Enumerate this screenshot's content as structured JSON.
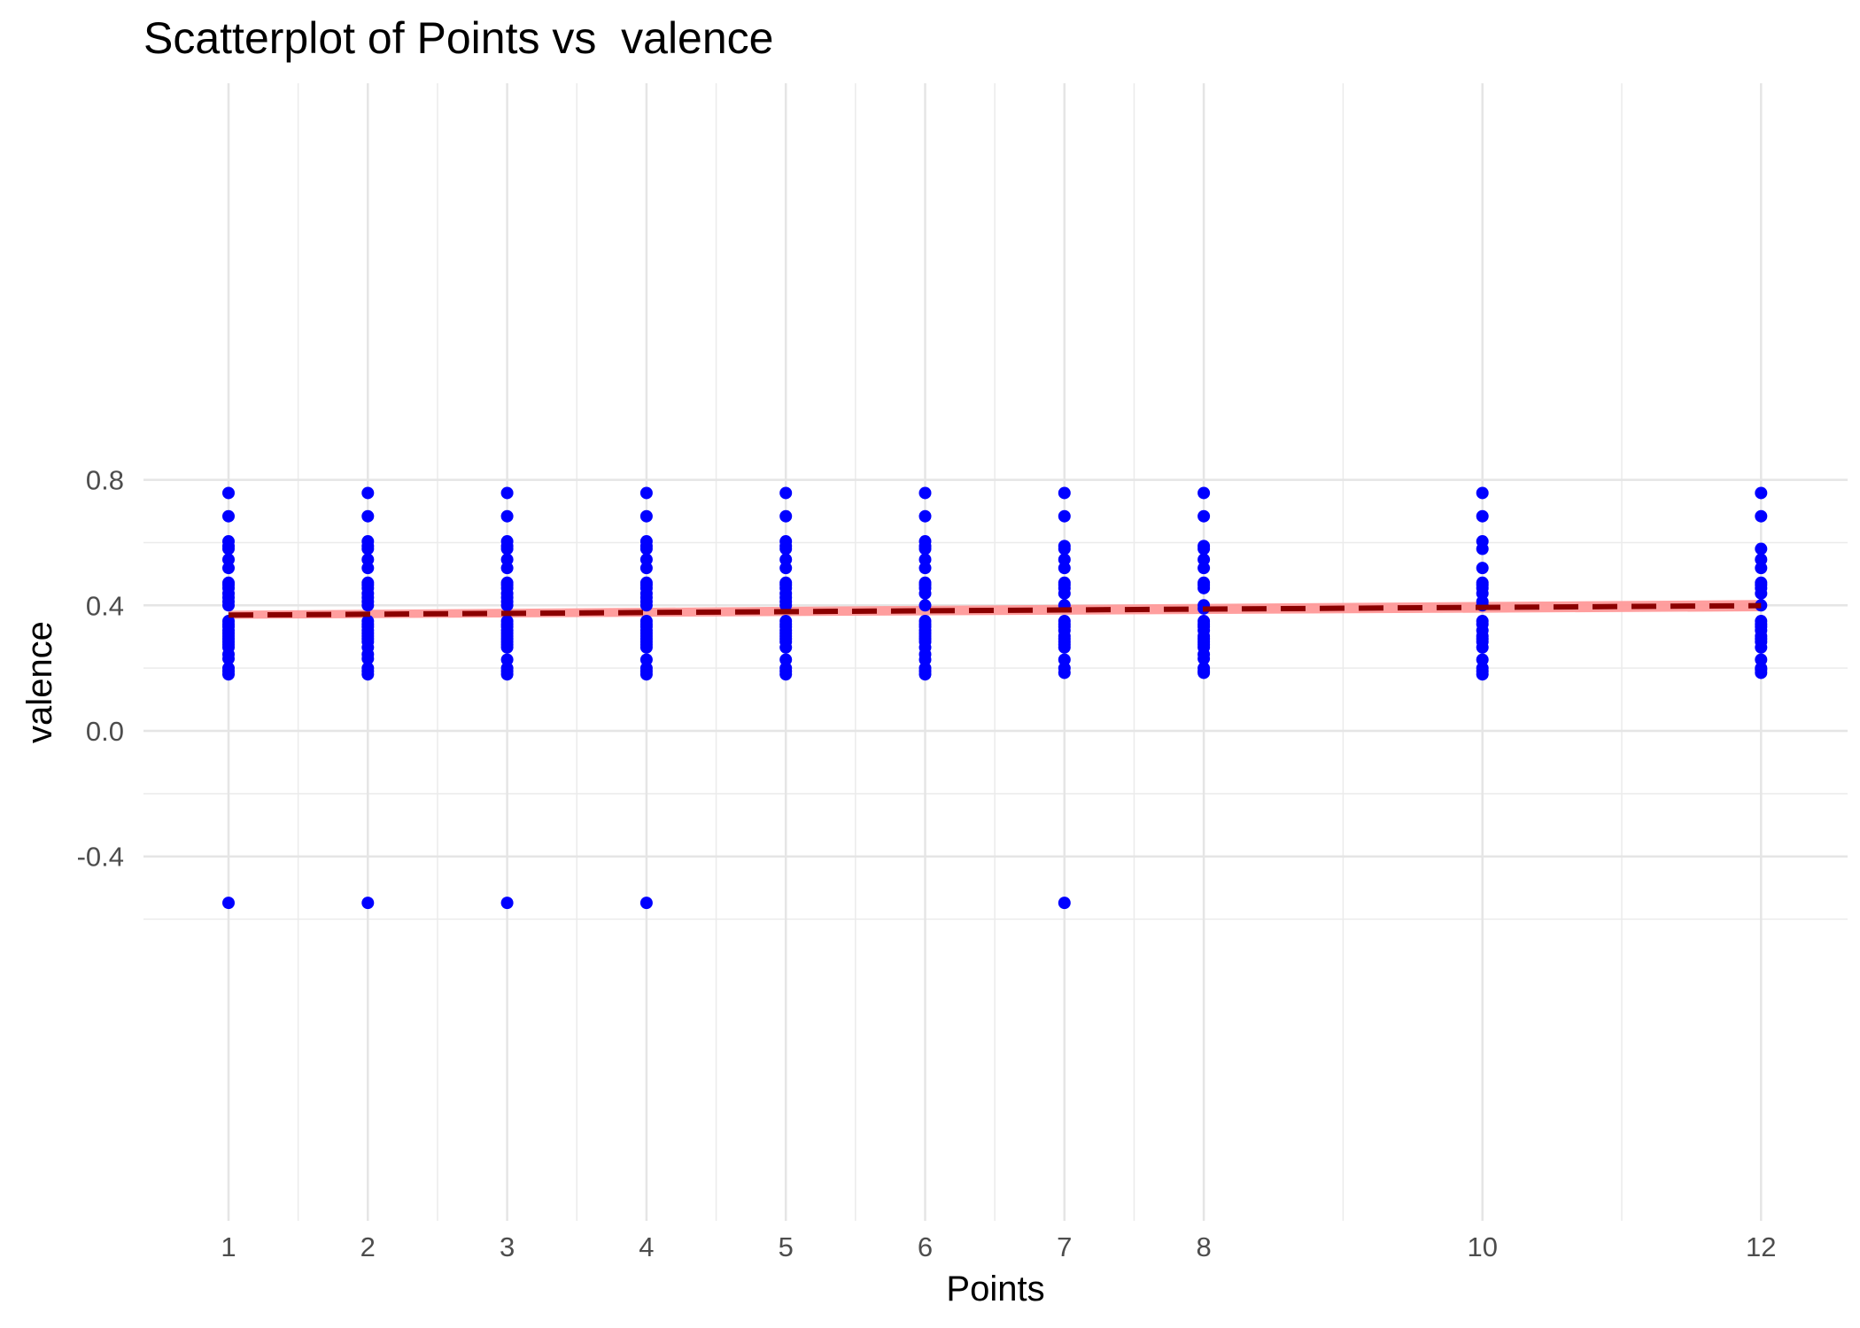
{
  "chart_data": {
    "type": "scatter",
    "title": "Scatterplot of Points vs  valence",
    "xlabel": "Points",
    "ylabel": "valence",
    "xlim": [
      0.4,
      12.4
    ],
    "ylim": [
      -0.6,
      0.81
    ],
    "x_ticks": [
      1,
      2,
      3,
      4,
      5,
      6,
      7,
      8,
      10,
      12
    ],
    "x_tick_labels": [
      "1",
      "2",
      "3",
      "4",
      "5",
      "6",
      "7",
      "8",
      "10",
      "12"
    ],
    "y_ticks": [
      -0.4,
      0.0,
      0.4,
      0.8
    ],
    "y_tick_labels": [
      "-0.4",
      "0.0",
      "0.4",
      "0.8"
    ],
    "grid": true,
    "point_color": "#0000ff",
    "series": [
      {
        "values": [
          {
            "x": 1,
            "y": [
              0.758,
              0.684,
              0.604,
              0.589,
              0.58,
              0.546,
              0.519,
              0.472,
              0.465,
              0.455,
              0.438,
              0.425,
              0.412,
              0.4,
              0.35,
              0.34,
              0.332,
              0.32,
              0.311,
              0.302,
              0.293,
              0.284,
              0.275,
              0.266,
              0.244,
              0.23,
              0.2,
              0.19,
              0.18,
              -0.548
            ]
          },
          {
            "x": 2,
            "y": [
              0.758,
              0.684,
              0.604,
              0.589,
              0.58,
              0.546,
              0.519,
              0.472,
              0.465,
              0.455,
              0.438,
              0.425,
              0.412,
              0.4,
              0.35,
              0.34,
              0.332,
              0.32,
              0.311,
              0.302,
              0.293,
              0.284,
              0.266,
              0.244,
              0.23,
              0.2,
              0.19,
              0.18,
              -0.548
            ]
          },
          {
            "x": 3,
            "y": [
              0.758,
              0.684,
              0.604,
              0.589,
              0.58,
              0.546,
              0.519,
              0.472,
              0.465,
              0.455,
              0.438,
              0.425,
              0.412,
              0.4,
              0.35,
              0.34,
              0.332,
              0.32,
              0.311,
              0.302,
              0.293,
              0.284,
              0.275,
              0.266,
              0.227,
              0.2,
              0.19,
              0.18,
              -0.548
            ]
          },
          {
            "x": 4,
            "y": [
              0.758,
              0.684,
              0.604,
              0.589,
              0.58,
              0.546,
              0.519,
              0.472,
              0.465,
              0.455,
              0.438,
              0.425,
              0.412,
              0.4,
              0.35,
              0.34,
              0.332,
              0.32,
              0.311,
              0.302,
              0.293,
              0.284,
              0.275,
              0.266,
              0.227,
              0.2,
              0.19,
              0.18,
              -0.548
            ]
          },
          {
            "x": 5,
            "y": [
              0.758,
              0.684,
              0.604,
              0.589,
              0.58,
              0.546,
              0.519,
              0.472,
              0.465,
              0.455,
              0.438,
              0.425,
              0.412,
              0.4,
              0.35,
              0.34,
              0.332,
              0.32,
              0.311,
              0.302,
              0.293,
              0.284,
              0.266,
              0.227,
              0.2,
              0.19,
              0.18
            ]
          },
          {
            "x": 6,
            "y": [
              0.758,
              0.684,
              0.604,
              0.589,
              0.58,
              0.546,
              0.519,
              0.472,
              0.465,
              0.455,
              0.438,
              0.4,
              0.35,
              0.34,
              0.332,
              0.32,
              0.311,
              0.302,
              0.293,
              0.284,
              0.266,
              0.244,
              0.227,
              0.2,
              0.19,
              0.18
            ]
          },
          {
            "x": 7,
            "y": [
              0.758,
              0.684,
              0.589,
              0.58,
              0.546,
              0.519,
              0.472,
              0.465,
              0.455,
              0.438,
              0.4,
              0.35,
              0.34,
              0.332,
              0.32,
              0.302,
              0.293,
              0.284,
              0.275,
              0.266,
              0.227,
              0.2,
              0.185,
              -0.548
            ]
          },
          {
            "x": 8,
            "y": [
              0.758,
              0.684,
              0.589,
              0.58,
              0.546,
              0.519,
              0.472,
              0.465,
              0.455,
              0.4,
              0.39,
              0.35,
              0.34,
              0.332,
              0.32,
              0.302,
              0.293,
              0.284,
              0.275,
              0.266,
              0.244,
              0.23,
              0.2,
              0.19,
              0.185
            ]
          },
          {
            "x": 10,
            "y": [
              0.758,
              0.684,
              0.604,
              0.58,
              0.519,
              0.472,
              0.465,
              0.455,
              0.438,
              0.412,
              0.4,
              0.35,
              0.34,
              0.32,
              0.302,
              0.293,
              0.284,
              0.266,
              0.227,
              0.2,
              0.19,
              0.18
            ]
          },
          {
            "x": 12,
            "y": [
              0.758,
              0.684,
              0.58,
              0.546,
              0.519,
              0.472,
              0.465,
              0.455,
              0.438,
              0.4,
              0.35,
              0.34,
              0.332,
              0.32,
              0.302,
              0.293,
              0.284,
              0.266,
              0.227,
              0.2,
              0.195,
              0.185
            ]
          }
        ]
      }
    ],
    "trend_line": {
      "style": "dashed",
      "color": "#8b0000",
      "band_color": "#ff9999",
      "x": [
        1,
        12
      ],
      "y": [
        0.369,
        0.399
      ],
      "band_lower": [
        0.357,
        0.381
      ],
      "band_upper": [
        0.383,
        0.417
      ]
    }
  }
}
